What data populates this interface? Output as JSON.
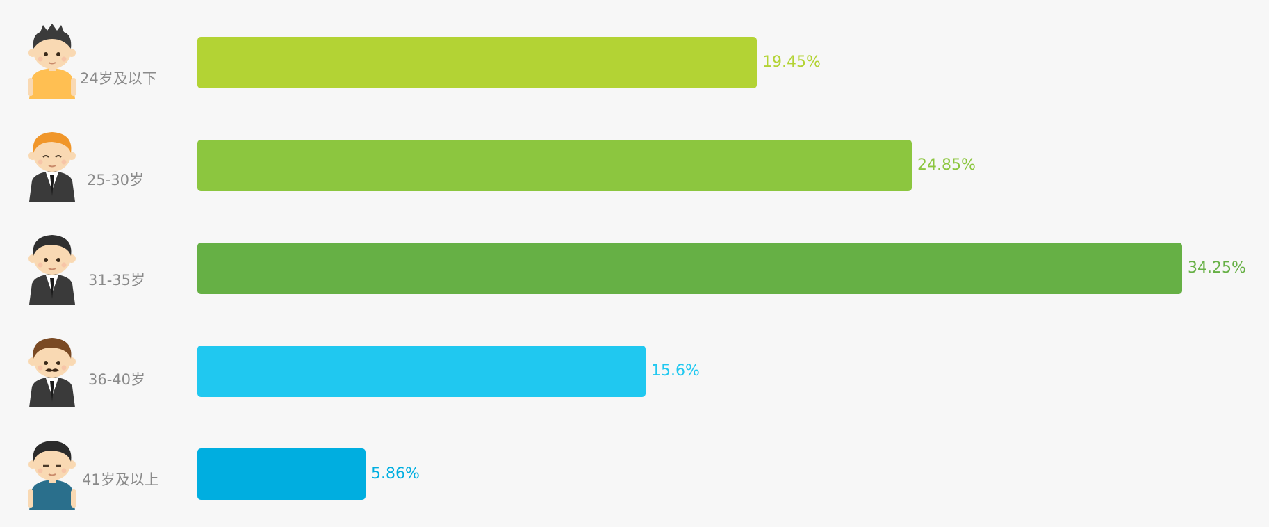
{
  "chart_data": {
    "type": "bar",
    "orientation": "horizontal",
    "categories": [
      "24岁及以下",
      "25-30岁",
      "31-35岁",
      "36-40岁",
      "41岁及以上"
    ],
    "values": [
      19.45,
      24.85,
      34.25,
      15.6,
      5.86
    ],
    "value_labels": [
      "19.45%",
      "24.85%",
      "34.25%",
      "15.6%",
      "5.86%"
    ],
    "colors": [
      "#b3d334",
      "#8cc63f",
      "#66b045",
      "#20c8f0",
      "#00aee0"
    ],
    "icons": [
      "young-man-yellow-shirt-icon",
      "redhead-man-suit-icon",
      "dark-hair-man-suit-icon",
      "mustache-man-suit-icon",
      "older-man-blue-shirt-icon"
    ],
    "title": "",
    "xlabel": "",
    "ylabel": "",
    "xlim": [
      0,
      34.25
    ],
    "grid": false,
    "legend": "none"
  }
}
